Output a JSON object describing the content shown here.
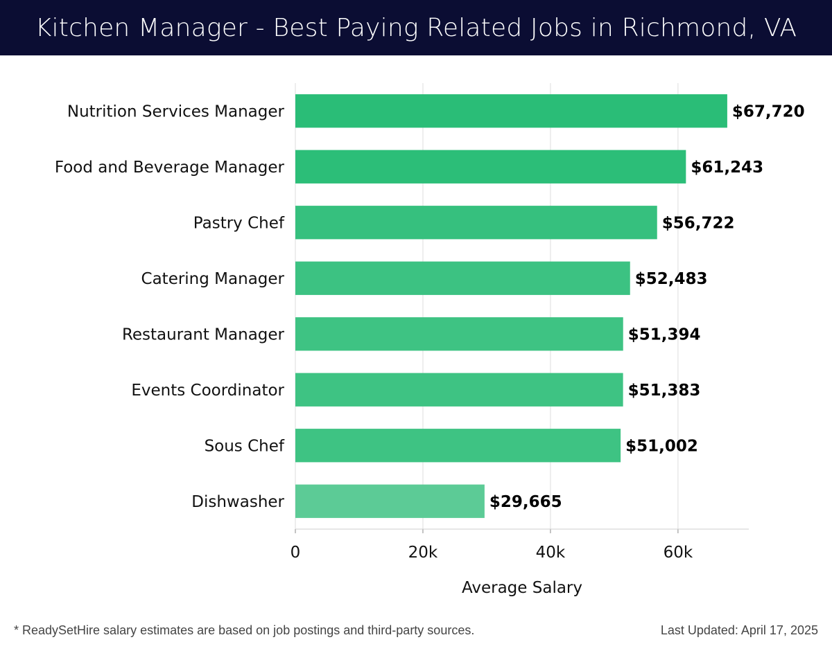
{
  "header": {
    "title": "Kitchen Manager - Best Paying Related Jobs in Richmond, VA"
  },
  "chart_data": {
    "type": "bar",
    "orientation": "horizontal",
    "title": "Kitchen Manager - Best Paying Related Jobs in Richmond, VA",
    "xlabel": "Average Salary",
    "ylabel": "",
    "categories": [
      "Nutrition Services Manager",
      "Food and Beverage Manager",
      "Pastry Chef",
      "Catering Manager",
      "Restaurant Manager",
      "Events Coordinator",
      "Sous Chef",
      "Dishwasher"
    ],
    "values": [
      67720,
      61243,
      56722,
      52483,
      51394,
      51383,
      51002,
      29665
    ],
    "value_labels": [
      "$67,720",
      "$61,243",
      "$56,722",
      "$52,483",
      "$51,394",
      "$51,383",
      "$51,002",
      "$29,665"
    ],
    "xticks": [
      0,
      20000,
      40000,
      60000
    ],
    "xtick_labels": [
      "0",
      "20k",
      "40k",
      "60k"
    ],
    "xlim": [
      0,
      71100
    ],
    "grid": true,
    "bar_color": "#27be74",
    "bar_colors": [
      "#2abd77",
      "#2cbe78",
      "#36c07e",
      "#3cc282",
      "#3ec383",
      "#3ec383",
      "#3ec383",
      "#5ccb96"
    ]
  },
  "footer": {
    "note": "* ReadySetHire salary estimates are based on job postings and third-party sources.",
    "updated": "Last Updated: April 17, 2025"
  }
}
